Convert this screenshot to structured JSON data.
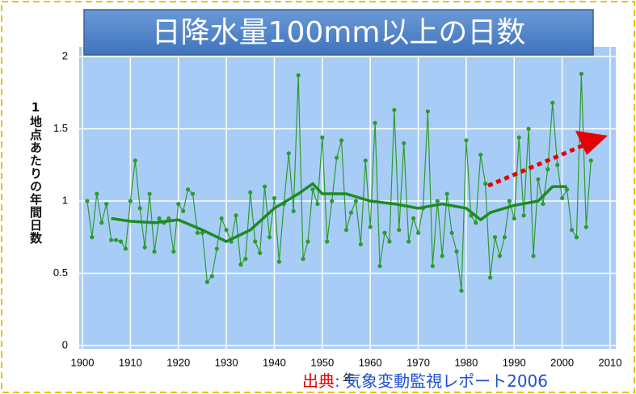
{
  "chart_data": {
    "type": "line",
    "title": "日降水量100mm以上の日数",
    "y_label": "1地点あたりの年間日数",
    "x_label": "年",
    "source_label": "出典",
    "source_text": ": 気象変動監視レポート2006",
    "xlim": [
      1900,
      2010
    ],
    "xticks": [
      1900,
      1910,
      1920,
      1930,
      1940,
      1950,
      1960,
      1970,
      1980,
      1990,
      2000,
      2010
    ],
    "ylim": [
      0,
      2
    ],
    "yticks": [
      0,
      0.5,
      1,
      1.5,
      2
    ],
    "grid": true,
    "series": [
      {
        "color": "#2f9a2f",
        "x": [
          1901,
          1902,
          1903,
          1904,
          1905,
          1906,
          1907,
          1908,
          1909,
          1910,
          1911,
          1912,
          1913,
          1914,
          1915,
          1916,
          1917,
          1918,
          1919,
          1920,
          1921,
          1922,
          1923,
          1924,
          1925,
          1926,
          1927,
          1928,
          1929,
          1930,
          1931,
          1932,
          1933,
          1934,
          1935,
          1936,
          1937,
          1938,
          1939,
          1940,
          1941,
          1942,
          1943,
          1944,
          1945,
          1946,
          1947,
          1948,
          1949,
          1950,
          1951,
          1952,
          1953,
          1954,
          1955,
          1956,
          1957,
          1958,
          1959,
          1960,
          1961,
          1962,
          1963,
          1964,
          1965,
          1966,
          1967,
          1968,
          1969,
          1970,
          1971,
          1972,
          1973,
          1974,
          1975,
          1976,
          1977,
          1978,
          1979,
          1980,
          1981,
          1982,
          1983,
          1984,
          1985,
          1986,
          1987,
          1988,
          1989,
          1990,
          1991,
          1992,
          1993,
          1994,
          1995,
          1996,
          1997,
          1998,
          1999,
          2000,
          2001,
          2002,
          2003,
          2004,
          2005,
          2006
        ],
        "values": [
          1.0,
          0.75,
          1.05,
          0.85,
          0.98,
          0.73,
          0.73,
          0.72,
          0.67,
          1.0,
          1.28,
          0.95,
          0.68,
          1.05,
          0.65,
          0.88,
          0.85,
          0.88,
          0.65,
          0.98,
          0.93,
          1.08,
          1.05,
          0.78,
          0.78,
          0.44,
          0.48,
          0.67,
          0.88,
          0.8,
          0.72,
          0.9,
          0.56,
          0.6,
          1.06,
          0.72,
          0.64,
          1.1,
          0.75,
          1.02,
          0.58,
          0.98,
          1.33,
          0.93,
          1.87,
          0.6,
          0.72,
          1.08,
          0.98,
          1.44,
          0.72,
          1.0,
          1.3,
          1.42,
          0.8,
          0.92,
          1.0,
          0.7,
          1.28,
          0.82,
          1.54,
          0.55,
          0.78,
          0.72,
          1.63,
          0.8,
          1.4,
          0.72,
          0.88,
          0.78,
          0.95,
          1.62,
          0.55,
          1.0,
          0.62,
          1.05,
          0.78,
          0.65,
          0.38,
          1.42,
          0.9,
          0.85,
          1.32,
          1.12,
          0.47,
          0.75,
          0.62,
          0.75,
          1.0,
          0.88,
          1.44,
          0.9,
          1.5,
          0.62,
          1.15,
          0.98,
          1.22,
          1.68,
          1.25,
          1.02,
          1.08,
          0.8,
          0.75,
          1.88,
          0.82,
          1.28
        ],
        "markers": true,
        "line_width": 1.2
      },
      {
        "color": "#1f8a24",
        "x": [
          1906,
          1910,
          1915,
          1920,
          1925,
          1930,
          1935,
          1940,
          1945,
          1948,
          1950,
          1955,
          1960,
          1965,
          1970,
          1975,
          1980,
          1983,
          1985,
          1990,
          1995,
          1998,
          2001
        ],
        "values": [
          0.88,
          0.86,
          0.85,
          0.87,
          0.8,
          0.72,
          0.8,
          0.95,
          1.05,
          1.12,
          1.05,
          1.05,
          1.0,
          0.98,
          0.95,
          0.98,
          0.95,
          0.87,
          0.92,
          0.97,
          1.0,
          1.1,
          1.1
        ],
        "markers": false,
        "line_width": 3.5
      }
    ]
  }
}
